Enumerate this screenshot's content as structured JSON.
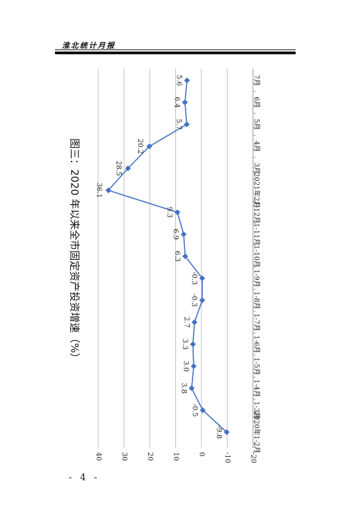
{
  "header": {
    "title": "淮北统计月报"
  },
  "page_number": "- 4 -",
  "chart_data": {
    "type": "line",
    "title": "图三：2020 年以来全市固定资产投资增速（%）",
    "categories": [
      "2020年1-2月",
      "1-3月",
      "1-4月",
      "1-5月",
      "1-6月",
      "1-7月",
      "1-8月",
      "1-9月",
      "1-10月",
      "1-11月",
      "1-12月",
      "2021年2月",
      "3月",
      "4月",
      "5月",
      "6月",
      "7月"
    ],
    "values": [
      -9.8,
      -0.5,
      3.8,
      3.0,
      3.3,
      2.7,
      -0.3,
      -0.3,
      6.3,
      6.9,
      9.3,
      36.1,
      28.5,
      20.2,
      5.7,
      6.4,
      5.6
    ],
    "data_labels": [
      "-9.8",
      "-0.5",
      "3.8",
      "3.0",
      "3.3",
      "2.7",
      "-0.3",
      "-0.3",
      "6.3",
      "6.9",
      "9.3",
      "36.1",
      "28.5",
      "20.2",
      "5.7",
      "6.4",
      "5.6"
    ],
    "y_ticks": [
      "40",
      "30",
      "20",
      "10",
      "0",
      "-10",
      "-20"
    ],
    "ylim": [
      -20,
      40
    ],
    "grid": true,
    "orientation": "rotated-90-clockwise",
    "colors": {
      "series": "#4472c4",
      "grid": "#b0b0b0"
    }
  }
}
